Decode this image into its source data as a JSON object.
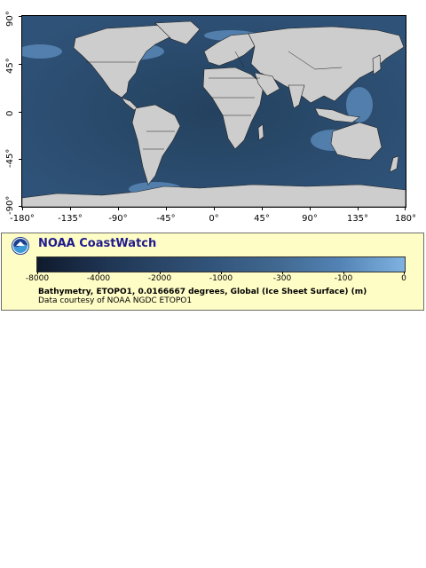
{
  "map": {
    "x_ticks": [
      "-180°",
      "-135°",
      "-90°",
      "-45°",
      "0°",
      "45°",
      "90°",
      "135°",
      "180°"
    ],
    "y_ticks": [
      "90°",
      "45°",
      "0",
      "-45°",
      "-90°"
    ],
    "colors": {
      "ocean_deep": "#1e3653",
      "ocean": "#2e4f74",
      "ocean_shelf": "#6fa3d6",
      "land": "#cdcdcd",
      "border": "#222222"
    }
  },
  "legend": {
    "brand": "NOAA CoastWatch",
    "logo_icon": "noaa-logo-icon",
    "colorbar_labels": [
      "-8000",
      "-4000",
      "-2000",
      "-1000",
      "-300",
      "-100",
      "0"
    ],
    "colorbar_colors": [
      "#0f1a2c",
      "#2a4668",
      "#426991",
      "#7fb2e0"
    ],
    "caption": "Bathymetry, ETOPO1, 0.0166667 degrees, Global (Ice Sheet Surface) (m)",
    "credit": "Data courtesy of NOAA NGDC ETOPO1",
    "background": "#fffdc6",
    "brand_color": "#201a8d"
  }
}
